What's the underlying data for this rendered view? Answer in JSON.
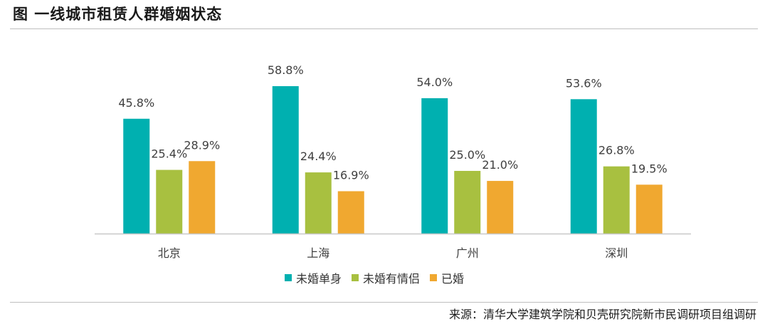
{
  "title": "图  一线城市租赁人群婚姻状态",
  "source": "来源：清华大学建筑学院和贝壳研究院新市民调研项目组调研",
  "chart_data": {
    "type": "bar",
    "categories": [
      "北京",
      "上海",
      "广州",
      "深圳"
    ],
    "series": [
      {
        "name": "未婚单身",
        "color": "#00B0B0",
        "values": [
          45.8,
          58.8,
          54.0,
          53.6
        ],
        "labels": [
          "45.8%",
          "58.8%",
          "54.0%",
          "53.6%"
        ]
      },
      {
        "name": "未婚有情侣",
        "color": "#A8C040",
        "values": [
          25.4,
          24.4,
          25.0,
          26.8
        ],
        "labels": [
          "25.4%",
          "24.4%",
          "25.0%",
          "26.8%"
        ]
      },
      {
        "name": "已婚",
        "color": "#F0A830",
        "values": [
          28.9,
          16.9,
          21.0,
          19.5
        ],
        "labels": [
          "28.9%",
          "16.9%",
          "21.0%",
          "19.5%"
        ]
      }
    ],
    "ylim": [
      0,
      60
    ],
    "legend": "bottom",
    "grid": false
  }
}
